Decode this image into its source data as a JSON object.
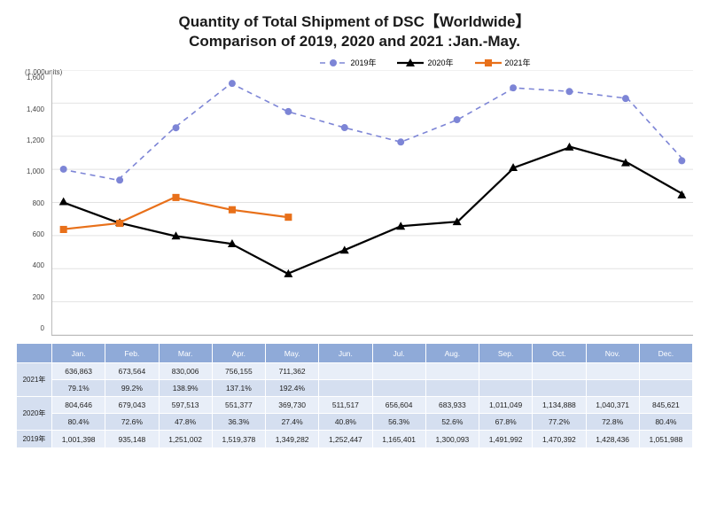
{
  "title_line1": "Quantity of Total Shipment of DSC【Worldwide】",
  "title_line2": "Comparison of 2019, 2020 and 2021 :Jan.-May.",
  "title_fontsize": 17,
  "ylabel": "(1,000units)",
  "chart": {
    "type": "line",
    "ylim": [
      0,
      1600
    ],
    "ytick_step": 200,
    "yticks": [
      "1,600",
      "1,400",
      "1,200",
      "1,000",
      "800",
      "600",
      "400",
      "200",
      "0"
    ],
    "months": [
      "Jan.",
      "Feb.",
      "Mar.",
      "Apr.",
      "May.",
      "Jun.",
      "Jul.",
      "Aug.",
      "Sep.",
      "Oct.",
      "Nov.",
      "Dec."
    ],
    "grid_color": "#e2e2e2",
    "axis_color": "#bbbbbb",
    "background_color": "#ffffff",
    "series": [
      {
        "name": "2019年",
        "color": "#7d85d6",
        "dash": "6,5",
        "marker": "circle",
        "marker_size": 4,
        "line_width": 1.6,
        "values": [
          1001,
          935,
          1251,
          1519,
          1349,
          1252,
          1165,
          1300,
          1492,
          1470,
          1428,
          1052
        ]
      },
      {
        "name": "2020年",
        "color": "#000000",
        "dash": "",
        "marker": "triangle",
        "marker_size": 5,
        "line_width": 2.2,
        "values": [
          805,
          679,
          598,
          551,
          370,
          512,
          657,
          684,
          1011,
          1135,
          1040,
          846
        ]
      },
      {
        "name": "2021年",
        "color": "#e8701a",
        "dash": "",
        "marker": "square",
        "marker_size": 4.5,
        "line_width": 2.2,
        "values": [
          637,
          674,
          830,
          756,
          711
        ]
      }
    ]
  },
  "table": {
    "header_bg": "#8faad8",
    "header_fg": "#ffffff",
    "band_a_bg": "#e8eef8",
    "band_b_bg": "#d5dff0",
    "rows": [
      {
        "label": "2021年",
        "values": [
          "636,863",
          "673,564",
          "830,006",
          "756,155",
          "711,362",
          "",
          "",
          "",
          "",
          "",
          "",
          ""
        ],
        "band": "a"
      },
      {
        "label": "",
        "values": [
          "79.1%",
          "99.2%",
          "138.9%",
          "137.1%",
          "192.4%",
          "",
          "",
          "",
          "",
          "",
          "",
          ""
        ],
        "band": "b"
      },
      {
        "label": "2020年",
        "values": [
          "804,646",
          "679,043",
          "597,513",
          "551,377",
          "369,730",
          "511,517",
          "656,604",
          "683,933",
          "1,011,049",
          "1,134,888",
          "1,040,371",
          "845,621"
        ],
        "band": "a"
      },
      {
        "label": "",
        "values": [
          "80.4%",
          "72.6%",
          "47.8%",
          "36.3%",
          "27.4%",
          "40.8%",
          "56.3%",
          "52.6%",
          "67.8%",
          "77.2%",
          "72.8%",
          "80.4%"
        ],
        "band": "b"
      },
      {
        "label": "2019年",
        "values": [
          "1,001,398",
          "935,148",
          "1,251,002",
          "1,519,378",
          "1,349,282",
          "1,252,447",
          "1,165,401",
          "1,300,093",
          "1,491,992",
          "1,470,392",
          "1,428,436",
          "1,051,988"
        ],
        "band": "a"
      }
    ]
  }
}
